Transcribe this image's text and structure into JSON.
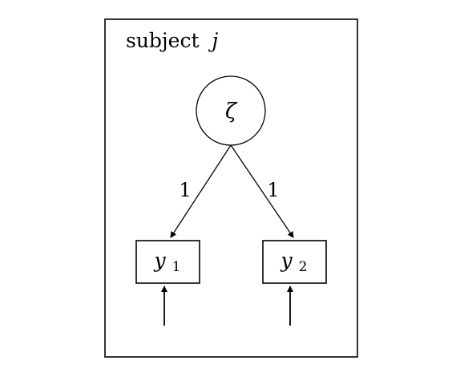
{
  "diagram": {
    "plate": {
      "label_prefix": "subject",
      "label_index": "j"
    },
    "latent": {
      "symbol": "ζ"
    },
    "paths": [
      {
        "weight": "1"
      },
      {
        "weight": "1"
      }
    ],
    "observed": [
      {
        "symbol": "y",
        "subscript": "1"
      },
      {
        "symbol": "y",
        "subscript": "2"
      }
    ]
  }
}
